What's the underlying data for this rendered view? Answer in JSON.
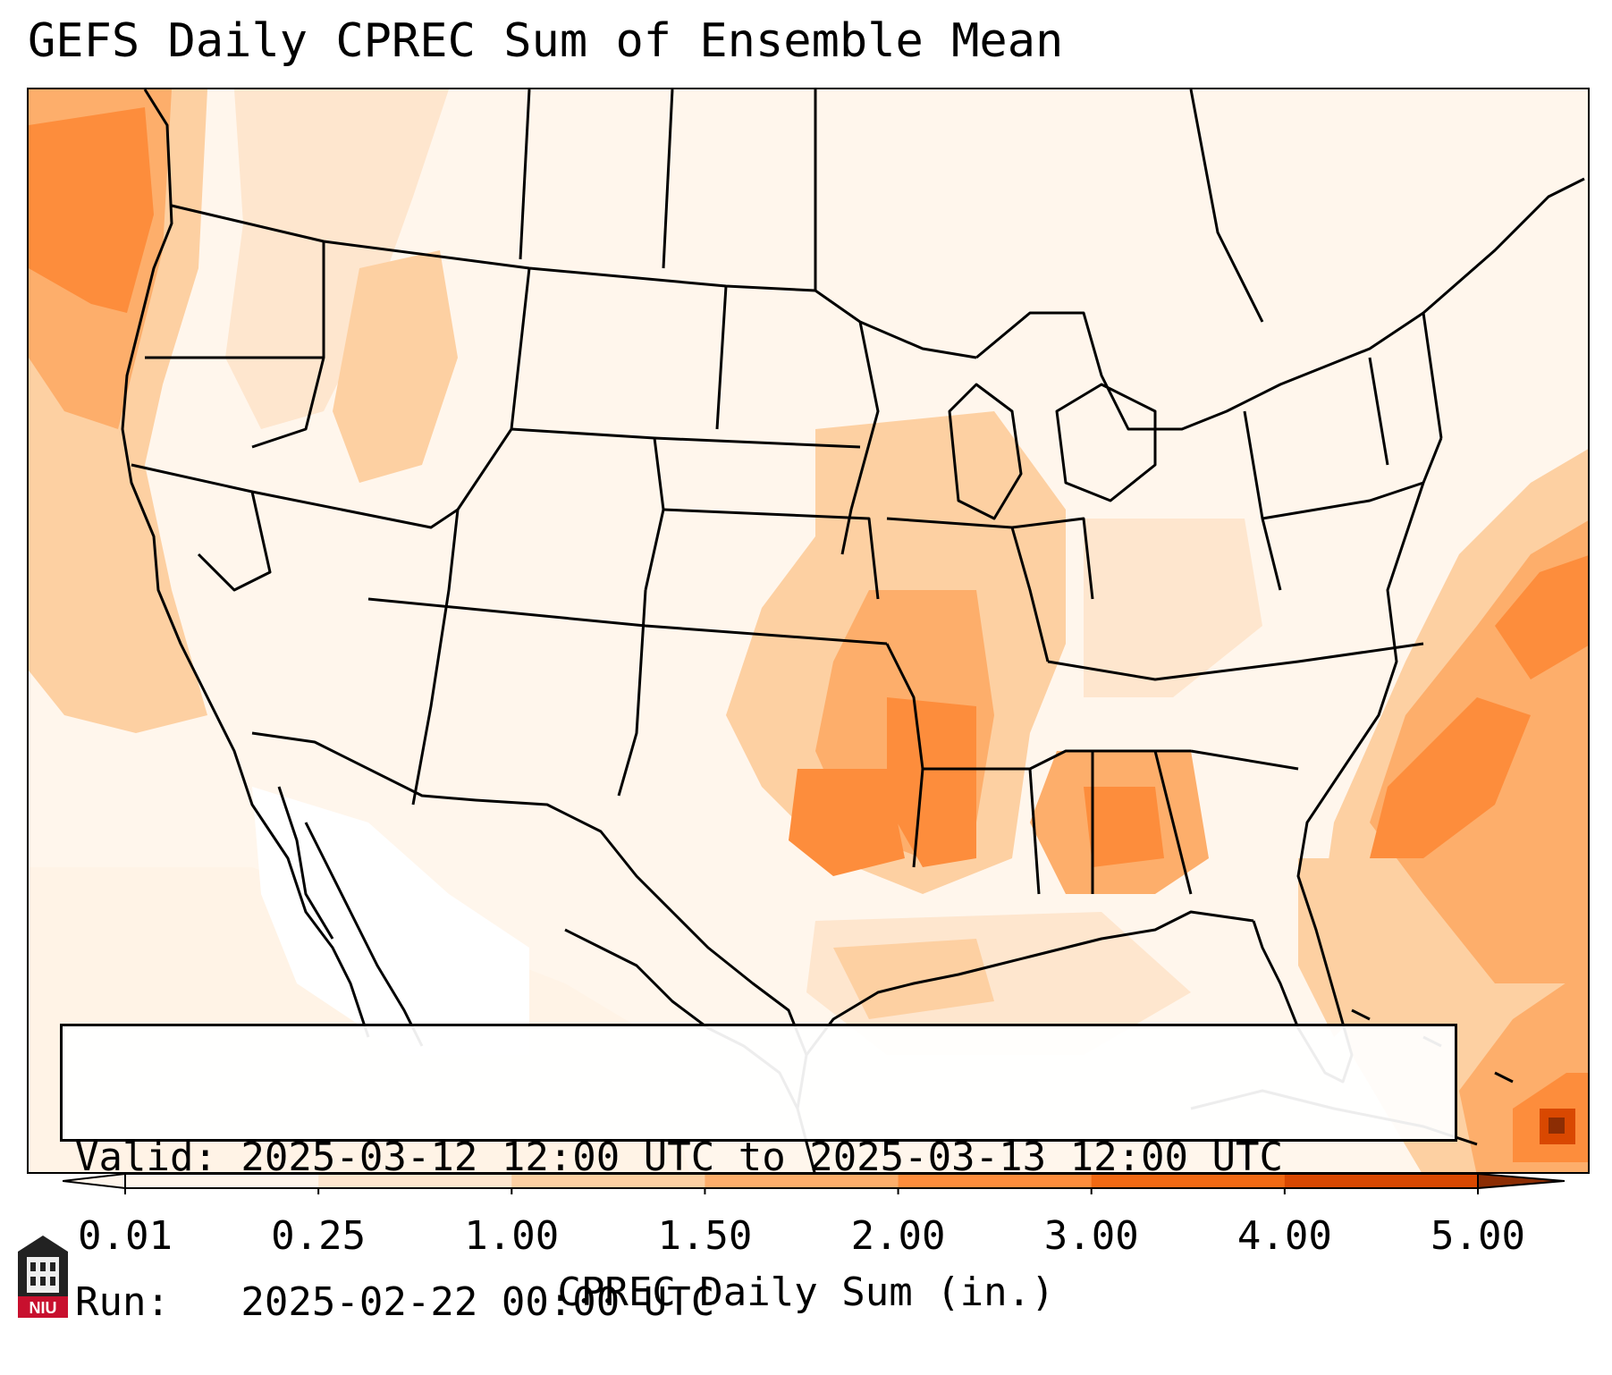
{
  "title": "GEFS Daily CPREC Sum of Ensemble Mean",
  "info": {
    "valid_line": "Valid: 2025-03-12 12:00 UTC to 2025-03-13 12:00 UTC",
    "run_line": "Run:   2025-02-22 00:00 UTC"
  },
  "colorbar": {
    "label": "CPREC Daily Sum (in.)",
    "ticks": [
      "0.01",
      "0.25",
      "1.00",
      "1.50",
      "2.00",
      "3.00",
      "4.00",
      "5.00"
    ],
    "colors": [
      "#fff5eb",
      "#fee6ce",
      "#fdd0a2",
      "#fdae6b",
      "#fd8d3c",
      "#f16913",
      "#d94801",
      "#8c2d04"
    ],
    "extend": "both"
  },
  "map": {
    "projection": "Lambert conformal, CONUS",
    "features": [
      "coastlines",
      "state boundaries",
      "country boundaries"
    ],
    "palette": {
      "background": "#fff6ec",
      "light": "#fee6ce",
      "medium": "#fdd0a2",
      "strong": "#fdae6b",
      "heavy": "#fd8d3c",
      "max": "#d94801",
      "dry": "#ffffff"
    },
    "heavy_precip_regions": [
      "Pacific Northwest coast",
      "Lower Mississippi Valley",
      "Alabama",
      "Western Atlantic",
      "Northern Caribbean"
    ]
  },
  "logo": {
    "text": "NIU"
  }
}
